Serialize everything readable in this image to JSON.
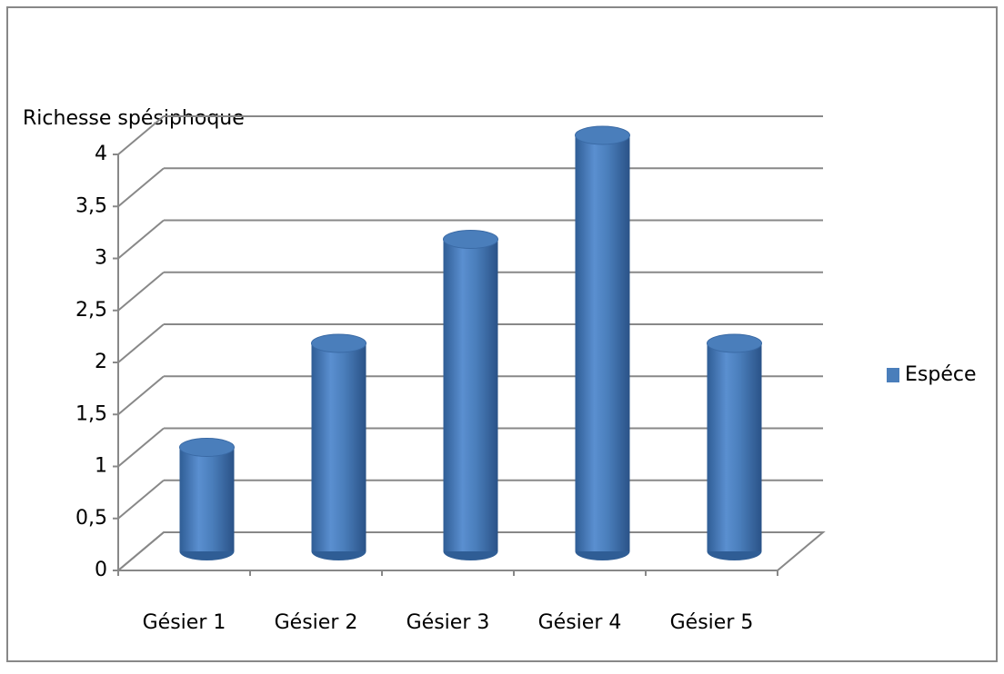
{
  "chart_data": {
    "type": "bar",
    "y_axis_label": "Richesse spésiphoque",
    "categories": [
      "Gésier 1",
      "Gésier 2",
      "Gésier 3",
      "Gésier 4",
      "Gésier 5"
    ],
    "series": [
      {
        "name": "Espéce",
        "color": "#4a7ebb",
        "values": [
          1,
          2,
          3,
          4,
          2
        ]
      }
    ],
    "ylim": [
      0,
      4
    ],
    "yticks": [
      0,
      {
        "value": 0.5,
        "label": "0,5"
      },
      1,
      {
        "value": 1.5,
        "label": "1,5"
      },
      2,
      {
        "value": 2.5,
        "label": "2,5"
      },
      3,
      {
        "value": 3.5,
        "label": "3,5"
      },
      4
    ],
    "grid": true,
    "legend": "right"
  }
}
